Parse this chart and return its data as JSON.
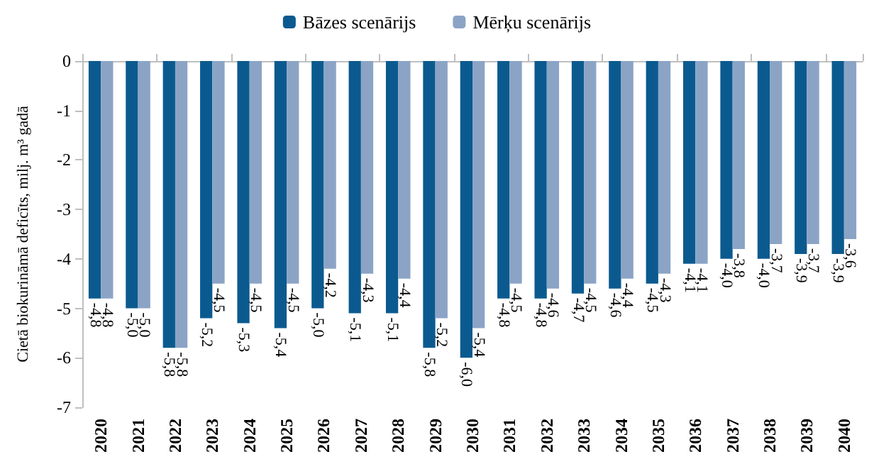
{
  "chart_data": {
    "type": "bar",
    "ylabel": "Cietā biokurināmā deficīts, milj. m³ gadā",
    "categories": [
      "2020",
      "2021",
      "2022",
      "2023",
      "2024",
      "2025",
      "2026",
      "2027",
      "2028",
      "2029",
      "2030",
      "2031",
      "2032",
      "2033",
      "2034",
      "2035",
      "2036",
      "2037",
      "2038",
      "2039",
      "2040"
    ],
    "series": [
      {
        "name": "Bāzes scenārijs",
        "color": "#0b5a8f",
        "values": [
          -4.8,
          -5.0,
          -5.8,
          -5.2,
          -5.3,
          -5.4,
          -5.0,
          -5.1,
          -5.1,
          -5.8,
          -6.0,
          -4.8,
          -4.8,
          -4.7,
          -4.6,
          -4.5,
          -4.1,
          -4.0,
          -4.0,
          -3.9,
          -3.9
        ],
        "value_labels": [
          "-4,8",
          "-5,0",
          "-5,8",
          "-5,2",
          "-5,3",
          "-5,4",
          "-5,0",
          "-5,1",
          "-5,1",
          "-5,8",
          "-6,0",
          "-4,8",
          "-4,8",
          "-4,7",
          "-4,6",
          "-4,5",
          "-4,1",
          "-4,0",
          "-4,0",
          "-3,9",
          "-3,9"
        ]
      },
      {
        "name": "Mērķu scenārijs",
        "color": "#8ba4c6",
        "values": [
          -4.8,
          -5.0,
          -5.8,
          -4.5,
          -4.5,
          -4.5,
          -4.2,
          -4.3,
          -4.4,
          -5.2,
          -5.4,
          -4.5,
          -4.6,
          -4.5,
          -4.4,
          -4.3,
          -4.1,
          -3.8,
          -3.7,
          -3.7,
          -3.6
        ],
        "value_labels": [
          "-4,8",
          "-5,0",
          "-5,8",
          "-4,5",
          "-4,5",
          "-4,5",
          "-4,2",
          "-4,3",
          "-4,4",
          "-5,2",
          "-5,4",
          "-4,5",
          "-4,6",
          "-4,5",
          "-4,4",
          "-4,3",
          "-4,1",
          "-3,8",
          "-3,7",
          "-3,7",
          "-3,6"
        ]
      }
    ],
    "ylim": [
      -7,
      0
    ],
    "yticks": [
      -7,
      -6,
      -5,
      -4,
      -3,
      -2,
      -1,
      0
    ],
    "grid": false,
    "legend": "top"
  }
}
